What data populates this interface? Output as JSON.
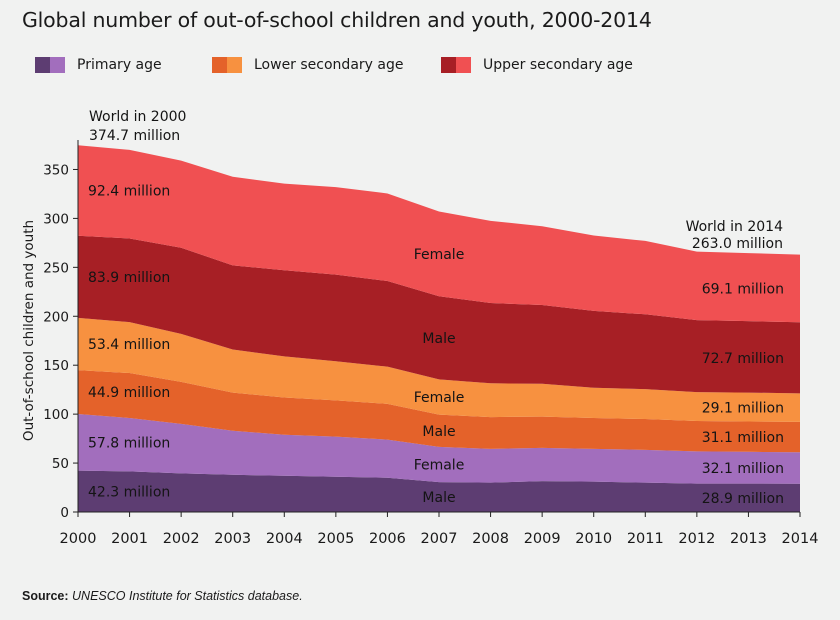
{
  "title": "Global number of out-of-school children and youth, 2000-2014",
  "legend": [
    {
      "label": "Primary age",
      "male_color": "#5d3d72",
      "female_color": "#a26ebd"
    },
    {
      "label": "Lower secondary age",
      "male_color": "#e4622a",
      "female_color": "#f79140"
    },
    {
      "label": "Upper secondary age",
      "male_color": "#a71f25",
      "female_color": "#f05052"
    }
  ],
  "source": {
    "prefix": "Source:",
    "text": "UNESCO Institute for Statistics database."
  },
  "chart_data": {
    "type": "area",
    "stacked": true,
    "title": "Global number of out-of-school children and youth, 2000-2014",
    "ylabel": "Out-of-school children and youth",
    "xlabel": "",
    "x": [
      2000,
      2001,
      2002,
      2003,
      2004,
      2005,
      2006,
      2007,
      2008,
      2009,
      2010,
      2011,
      2012,
      2013,
      2014
    ],
    "ylim": [
      0,
      375
    ],
    "yticks": [
      0,
      50,
      100,
      150,
      200,
      250,
      300,
      350
    ],
    "grid": false,
    "series": [
      {
        "group": "Primary age",
        "sex": "Male",
        "color": "#5d3d72",
        "values": [
          42.3,
          41.5,
          39.5,
          38,
          37,
          36,
          35,
          30.5,
          30,
          31.5,
          31,
          30,
          29,
          29,
          28.9
        ]
      },
      {
        "group": "Primary age",
        "sex": "Female",
        "color": "#a26ebd",
        "values": [
          57.8,
          54.5,
          50.5,
          45,
          42,
          41,
          39,
          36,
          34.5,
          34,
          33.5,
          33.5,
          33,
          32.5,
          32.1
        ]
      },
      {
        "group": "Lower secondary age",
        "sex": "Male",
        "color": "#e4622a",
        "values": [
          44.9,
          46,
          43,
          39,
          38,
          37,
          36.5,
          33,
          32.5,
          32,
          31.5,
          31.5,
          31,
          31,
          31.1
        ]
      },
      {
        "group": "Lower secondary age",
        "sex": "Female",
        "color": "#f79140",
        "values": [
          53.4,
          52,
          49,
          44,
          42,
          40,
          38,
          36,
          34.5,
          33.5,
          31,
          30.5,
          29.5,
          29.5,
          29.1
        ]
      },
      {
        "group": "Upper secondary age",
        "sex": "Male",
        "color": "#a71f25",
        "values": [
          83.9,
          85.5,
          88,
          86,
          88,
          88.5,
          87.5,
          85,
          82,
          80.5,
          78.5,
          76.5,
          73.5,
          73,
          72.7
        ]
      },
      {
        "group": "Upper secondary age",
        "sex": "Female",
        "color": "#f05052",
        "values": [
          92.4,
          90.5,
          89,
          90.5,
          88.5,
          89.5,
          89.5,
          86.5,
          84,
          80.5,
          77,
          75,
          70,
          69.5,
          69.1
        ]
      }
    ],
    "annotations": {
      "start_total": {
        "line1": "World in 2000",
        "line2": "374.7 million"
      },
      "end_total": {
        "line1": "World in 2014",
        "line2": "263.0 million"
      },
      "start_values": [
        "42.3 million",
        "57.8 million",
        "44.9 million",
        "53.4 million",
        "83.9 million",
        "92.4 million"
      ],
      "end_values": [
        "28.9 million",
        "32.1 million",
        "31.1 million",
        "29.1 million",
        "72.7 million",
        "69.1 million"
      ],
      "sex_labels": [
        "Male",
        "Female",
        "Male",
        "Female",
        "Male",
        "Female"
      ]
    }
  }
}
